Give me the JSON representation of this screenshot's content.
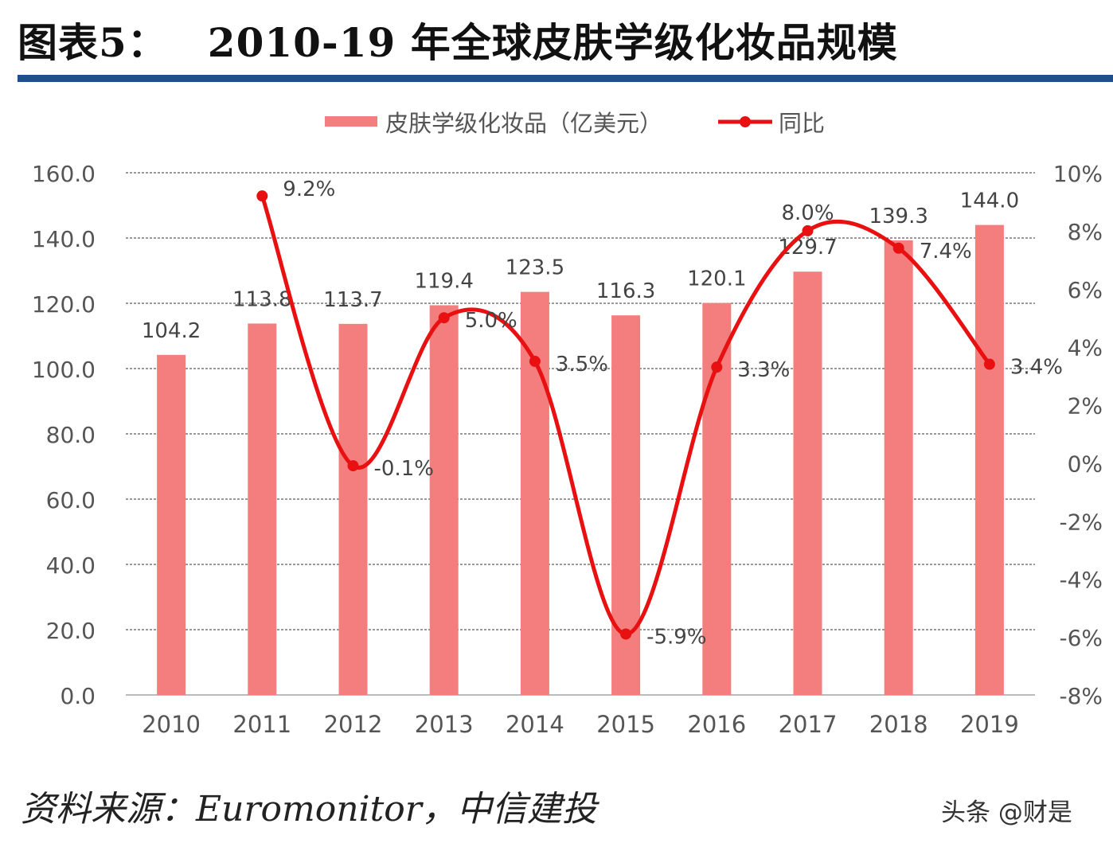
{
  "header": {
    "title_prefix": "图表5：",
    "title_main": "2010-19 年全球皮肤学级化妆品规模"
  },
  "footer": {
    "source": "资料来源：Euromonitor，中信建投",
    "watermark": "头条 @财是"
  },
  "colors": {
    "bar": "#f47e7e",
    "line": "#e81010",
    "rule": "#1f4e8c",
    "axis_text": "#555555",
    "label_text": "#444444",
    "grid": "#333333"
  },
  "chart_data": {
    "type": "bar",
    "categories": [
      "2010",
      "2011",
      "2012",
      "2013",
      "2014",
      "2015",
      "2016",
      "2017",
      "2018",
      "2019"
    ],
    "series": [
      {
        "name": "皮肤学级化妆品（亿美元）",
        "type": "bar",
        "axis": "left",
        "values": [
          104.2,
          113.8,
          113.7,
          119.4,
          123.5,
          116.3,
          120.1,
          129.7,
          139.3,
          144.0
        ],
        "labels": [
          "104.2",
          "113.8",
          "113.7",
          "119.4",
          "123.5",
          "116.3",
          "120.1",
          "129.7",
          "139.3",
          "144.0"
        ]
      },
      {
        "name": "同比",
        "type": "line",
        "axis": "right",
        "values": [
          null,
          9.2,
          -0.1,
          5.0,
          3.5,
          -5.9,
          3.3,
          8.0,
          7.4,
          3.4
        ],
        "labels": [
          "",
          "9.2%",
          "-0.1%",
          "5.0%",
          "3.5%",
          "-5.9%",
          "3.3%",
          "8.0%",
          "7.4%",
          "3.4%"
        ]
      }
    ],
    "ylim": [
      0,
      160
    ],
    "yticks": [
      "0.0",
      "20.0",
      "40.0",
      "60.0",
      "80.0",
      "100.0",
      "120.0",
      "140.0",
      "160.0"
    ],
    "y2lim": [
      -8,
      10
    ],
    "y2ticks": [
      "-8%",
      "-6%",
      "-4%",
      "-2%",
      "0%",
      "2%",
      "4%",
      "6%",
      "8%",
      "10%"
    ],
    "grid": true,
    "legend_position": "top-center"
  }
}
